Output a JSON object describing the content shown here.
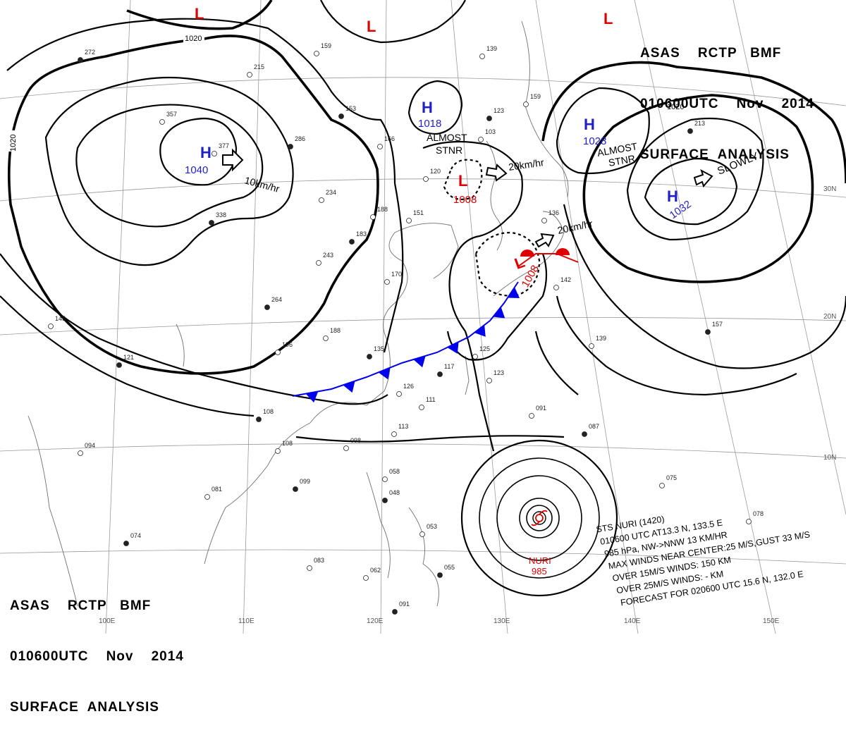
{
  "header_top": {
    "line1": "ASAS    RCTP   BMF",
    "line2": "010600UTC    Nov    2014",
    "line3": "SURFACE  ANALYSIS"
  },
  "header_bottom": {
    "line1": "ASAS    RCTP   BMF",
    "line2": "010600UTC    Nov    2014",
    "line3": "SURFACE  ANALYSIS"
  },
  "colors": {
    "high": "#1f1fcc",
    "low": "#e00000",
    "cold_front": "#0000ee",
    "warm_front": "#e00000",
    "ink": "#000000",
    "grid": "#9a9a9a"
  },
  "pressure_centers": [
    {
      "type": "H",
      "value": "1040"
    },
    {
      "type": "H",
      "value": "1018"
    },
    {
      "type": "L",
      "value": "1008"
    },
    {
      "type": "H",
      "value": "1028"
    },
    {
      "type": "H",
      "value": "1032"
    },
    {
      "type": "L",
      "value": "1008"
    },
    {
      "type": "L",
      "value": ""
    },
    {
      "type": "L",
      "value": ""
    },
    {
      "type": "L",
      "value": ""
    }
  ],
  "motion_labels": [
    "10km/hr",
    "20km/hr",
    "20km/hr",
    "SLOWLY"
  ],
  "stationary_labels": [
    {
      "line1": "ALMOST",
      "line2": "STNR"
    },
    {
      "line1": "ALMOST",
      "line2": "STNR"
    }
  ],
  "isobar_labels": [
    "1020",
    "1020",
    "1020"
  ],
  "lat_labels": [
    "30N",
    "20N",
    "10N"
  ],
  "lon_labels": [
    "100E",
    "110E",
    "120E",
    "130E",
    "140E",
    "150E"
  ],
  "typhoon": {
    "name": "NURI",
    "pressure": "985"
  },
  "typhoon_info": [
    "STS  NURI  (1420)",
    "010600 UTC  AT13.3 N, 133.5 E",
    "985 hPa, NW->NNW  13 KM/HR",
    "MAX WINDS NEAR CENTER:25 M/S,GUST 33 M/S",
    "OVER 15M/S WINDS: 150 KM",
    "OVER 25M/S WINDS: - KM",
    "FORECAST FOR 020600 UTC 15.6 N, 132.0 E"
  ],
  "station_numbers": [
    "272",
    "215",
    "159",
    "153",
    "357",
    "377",
    "286",
    "166",
    "139",
    "123",
    "103",
    "159",
    "213",
    "120",
    "234",
    "338",
    "188",
    "151",
    "183",
    "243",
    "170",
    "264",
    "188",
    "196",
    "135",
    "126",
    "111",
    "108",
    "108",
    "098",
    "099",
    "081",
    "058",
    "048",
    "083",
    "062",
    "055",
    "053",
    "113",
    "117",
    "123",
    "125",
    "157",
    "139",
    "091",
    "087",
    "075",
    "078",
    "074",
    "094",
    "145",
    "121",
    "142",
    "136",
    "091"
  ]
}
